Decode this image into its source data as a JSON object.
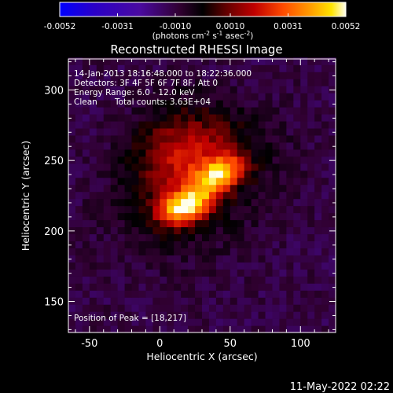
{
  "chart_data": {
    "type": "heatmap",
    "title": "Reconstructed RHESSI Image",
    "xlabel": "Heliocentric X (arcsec)",
    "ylabel": "Heliocentric Y (arcsec)",
    "xlim": [
      -65,
      125
    ],
    "ylim": [
      128,
      322
    ],
    "x_ticks": [
      -50,
      0,
      50,
      100
    ],
    "y_ticks": [
      150,
      200,
      250,
      300
    ],
    "colorbar": {
      "min": -0.0052,
      "max": 0.0052,
      "ticks": [
        "-0.0052",
        "-0.0031",
        "-0.0010",
        "0.0010",
        "0.0031",
        "0.0052"
      ],
      "tick_values": [
        -0.0052,
        -0.0031,
        -0.001,
        0.001,
        0.0031,
        0.0052
      ],
      "units_label": "(photons cm",
      "units_exp1": "-2",
      "units_mid": " s",
      "units_exp2": "-1",
      "units_mid2": " asec",
      "units_exp3": "-2",
      "units_end": ")"
    },
    "annotations": {
      "time_range": "14-Jan-2013 18:16:48.000 to 18:22:36.000",
      "detectors": "Detectors: 3F 4F 5F 6F 7F 8F, Att 0",
      "energy_range": "Energy Range: 6.0 - 12.0 keV",
      "method": "Clean",
      "total_counts": "Total counts: 3.63E+04",
      "peak_position": "Position of Peak = [18,217]"
    },
    "peak": [
      18,
      217
    ],
    "sources": [
      {
        "x": 18,
        "y": 218,
        "sx": 13,
        "sy": 9,
        "amp": 0.0052
      },
      {
        "x": 42,
        "y": 240,
        "sx": 12,
        "sy": 9,
        "amp": 0.004
      },
      {
        "x": 26,
        "y": 252,
        "sx": 24,
        "sy": 20,
        "amp": 0.002
      },
      {
        "x": 5,
        "y": 268,
        "sx": 22,
        "sy": 22,
        "amp": 0.0012
      },
      {
        "x": 28,
        "y": 228,
        "sx": 42,
        "sy": 34,
        "amp": 0.0011
      }
    ],
    "background_level": -0.0011
  },
  "footer": {
    "date": "11-May-2022 02:22"
  }
}
